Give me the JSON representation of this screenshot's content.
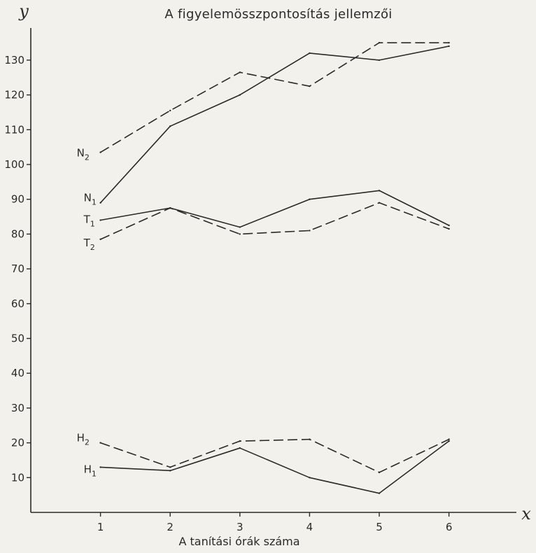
{
  "chart_data": {
    "type": "line",
    "title": "A figyelemösszpontosítás jellemzői",
    "xlabel": "A tanítási órák száma",
    "ylabel": "y",
    "x_axis_letter": "x",
    "x": [
      1,
      2,
      3,
      4,
      5,
      6
    ],
    "xlim": [
      0,
      7
    ],
    "ylim": [
      0,
      140
    ],
    "yticks": [
      10,
      20,
      30,
      40,
      50,
      60,
      70,
      80,
      90,
      100,
      110,
      120,
      130
    ],
    "grid": false,
    "series": [
      {
        "name": "N2",
        "base": "N",
        "sub": "2",
        "style": "dashed",
        "values": [
          103.5,
          115.5,
          126.5,
          122.5,
          135,
          135
        ]
      },
      {
        "name": "N1",
        "base": "N",
        "sub": "1",
        "style": "solid",
        "values": [
          89,
          111,
          120,
          132,
          130,
          134
        ]
      },
      {
        "name": "T1",
        "base": "T",
        "sub": "1",
        "style": "solid",
        "values": [
          84,
          87.5,
          82,
          90,
          92.5,
          82.5
        ]
      },
      {
        "name": "T2",
        "base": "T",
        "sub": "2",
        "style": "dashed",
        "values": [
          78.5,
          87.5,
          80,
          81,
          89,
          81.5
        ]
      },
      {
        "name": "H2",
        "base": "H",
        "sub": "2",
        "style": "dashed",
        "values": [
          20,
          13,
          20.5,
          21,
          11.5,
          21
        ]
      },
      {
        "name": "H1",
        "base": "H",
        "sub": "1",
        "style": "solid",
        "values": [
          13,
          12,
          18.5,
          10,
          5.5,
          20.5
        ]
      }
    ]
  }
}
